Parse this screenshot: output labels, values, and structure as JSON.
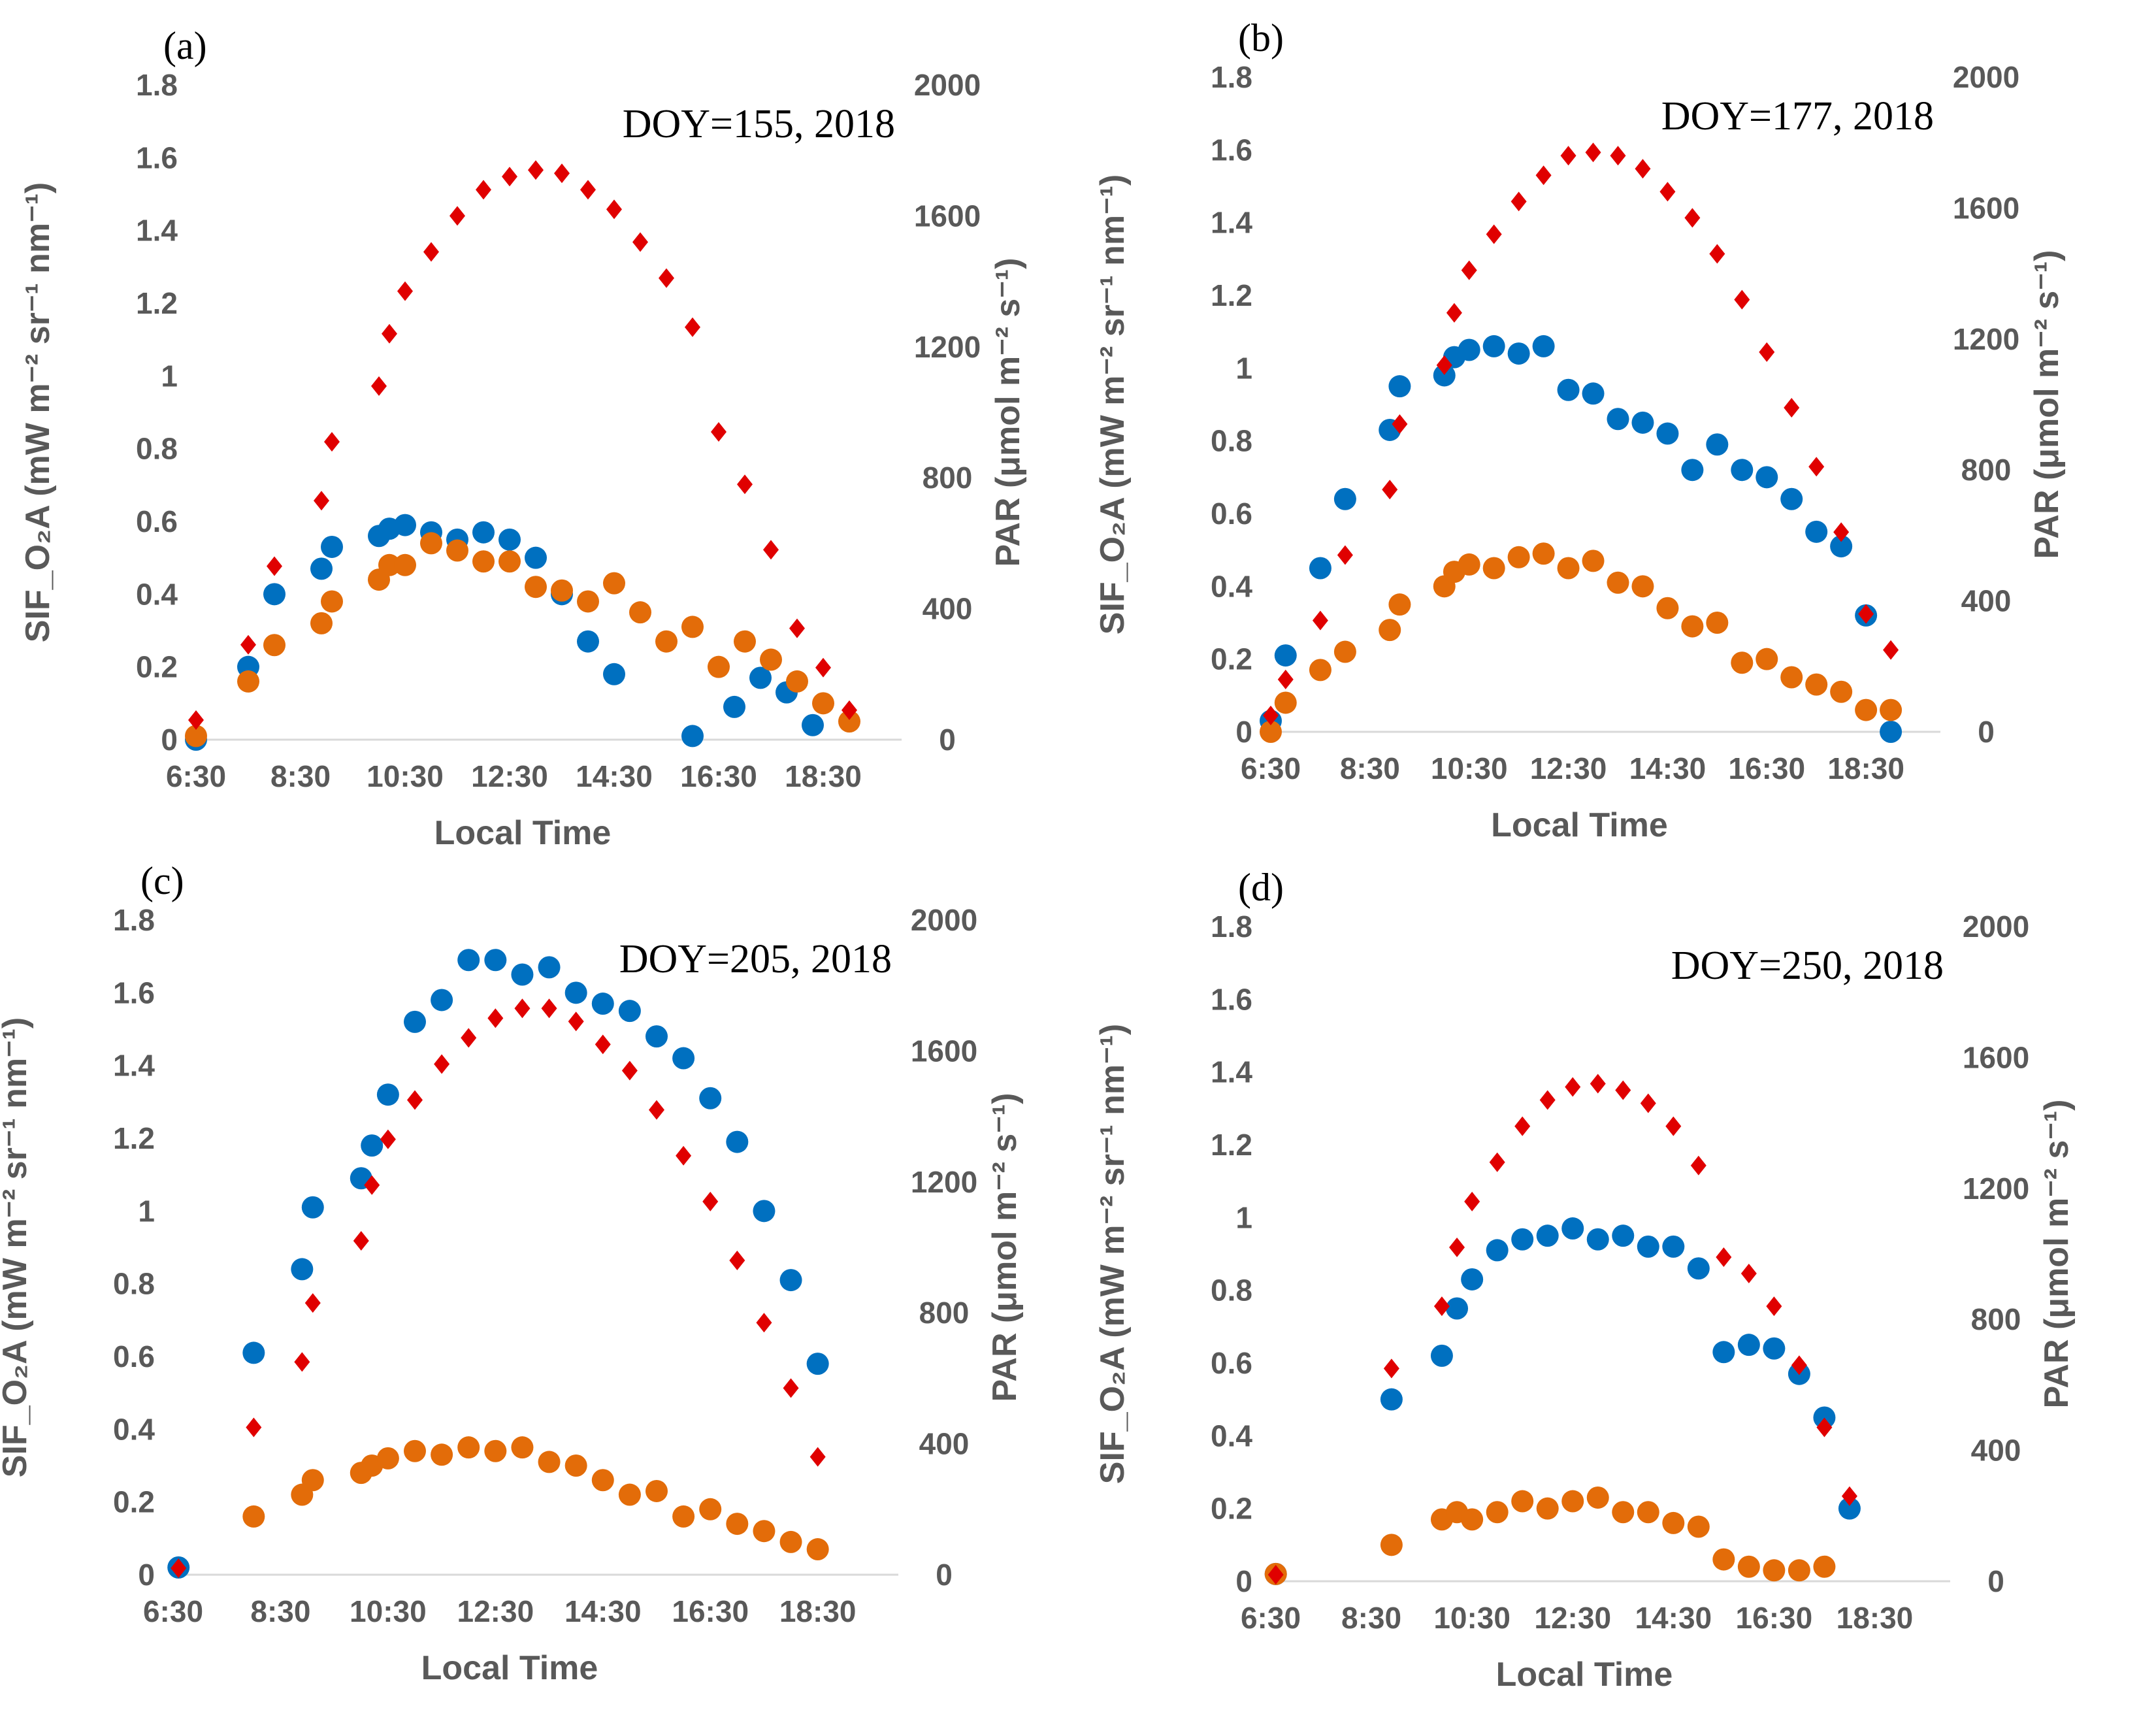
{
  "colors": {
    "sif_a": "#0070C0",
    "sif_b": "#E36C09",
    "par": "#E00000",
    "axis": "#d9d9d9",
    "text": "#595959"
  },
  "chart_data": [
    {
      "type": "scatter",
      "panel_label": "(a)",
      "annotation": "DOY=155,  2018",
      "xlabel": "Local Time",
      "ylabel_left": "SIF_O₂A (mW m⁻² sr⁻¹ nm⁻¹)",
      "ylabel_right": "PAR (μmol m⁻² s⁻¹)",
      "xlim": [
        6.5,
        20.0
      ],
      "xticks": [
        6.5,
        8.5,
        10.5,
        12.5,
        14.5,
        16.5,
        18.5
      ],
      "xtick_labels": [
        "6:30",
        "8:30",
        "10:30",
        "12:30",
        "14:30",
        "16:30",
        "18:30"
      ],
      "ylim_left": [
        0,
        1.8
      ],
      "yticks_left": [
        "0",
        "0.2",
        "0.4",
        "0.6",
        "0.8",
        "1",
        "1.2",
        "1.4",
        "1.6",
        "1.8"
      ],
      "ylim_right": [
        0,
        2000
      ],
      "yticks_right": [
        "0",
        "400",
        "800",
        "1200",
        "1600",
        "2000"
      ],
      "series": [
        {
          "name": "SIF (blue)",
          "axis": "left",
          "marker": "circle",
          "color": "#0070C0",
          "x": [
            6.5,
            7.5,
            8.0,
            8.9,
            9.1,
            10.0,
            10.2,
            10.5,
            11.0,
            11.5,
            12.0,
            12.5,
            13.0,
            13.5,
            14.0,
            14.5,
            16.0,
            16.8,
            17.3,
            17.8,
            18.3
          ],
          "y": [
            0.0,
            0.2,
            0.4,
            0.47,
            0.53,
            0.56,
            0.58,
            0.59,
            0.57,
            0.55,
            0.57,
            0.55,
            0.5,
            0.4,
            0.27,
            0.18,
            0.01,
            0.09,
            0.17,
            0.13,
            0.04
          ]
        },
        {
          "name": "SIF (orange)",
          "axis": "left",
          "marker": "circle",
          "color": "#E36C09",
          "x": [
            6.5,
            7.5,
            8.0,
            8.9,
            9.1,
            10.0,
            10.2,
            10.5,
            11.0,
            11.5,
            12.0,
            12.5,
            13.0,
            13.5,
            14.0,
            14.5,
            15.0,
            15.5,
            16.0,
            16.5,
            17.0,
            17.5,
            18.0,
            18.5,
            19.0
          ],
          "y": [
            0.01,
            0.16,
            0.26,
            0.32,
            0.38,
            0.44,
            0.48,
            0.48,
            0.54,
            0.52,
            0.49,
            0.49,
            0.42,
            0.41,
            0.38,
            0.43,
            0.35,
            0.27,
            0.31,
            0.2,
            0.27,
            0.22,
            0.16,
            0.1,
            0.05
          ]
        },
        {
          "name": "PAR",
          "axis": "right",
          "marker": "diamond",
          "color": "#E00000",
          "x": [
            6.5,
            7.5,
            8.0,
            8.9,
            9.1,
            10.0,
            10.2,
            10.5,
            11.0,
            11.5,
            12.0,
            12.5,
            13.0,
            13.5,
            14.0,
            14.5,
            15.0,
            15.5,
            16.0,
            16.5,
            17.0,
            17.5,
            18.0,
            18.5,
            19.0
          ],
          "y": [
            60,
            290,
            530,
            730,
            910,
            1080,
            1240,
            1370,
            1490,
            1600,
            1680,
            1720,
            1740,
            1730,
            1680,
            1620,
            1520,
            1410,
            1260,
            940,
            780,
            580,
            340,
            220,
            90
          ]
        }
      ]
    },
    {
      "type": "scatter",
      "panel_label": "(b)",
      "annotation": "DOY=177,  2018",
      "xlabel": "Local Time",
      "ylabel_left": "SIF_O₂A (mW m⁻² sr⁻¹ nm⁻¹)",
      "ylabel_right": "PAR (μmol m⁻² s⁻¹)",
      "xlim": [
        6.5,
        20.0
      ],
      "xticks": [
        6.5,
        8.5,
        10.5,
        12.5,
        14.5,
        16.5,
        18.5
      ],
      "xtick_labels": [
        "6:30",
        "8:30",
        "10:30",
        "12:30",
        "14:30",
        "16:30",
        "18:30"
      ],
      "ylim_left": [
        0,
        1.8
      ],
      "yticks_left": [
        "0",
        "0.2",
        "0.4",
        "0.6",
        "0.8",
        "1",
        "1.2",
        "1.4",
        "1.6",
        "1.8"
      ],
      "ylim_right": [
        0,
        2000
      ],
      "yticks_right": [
        "0",
        "400",
        "800",
        "1200",
        "1600",
        "2000"
      ],
      "series": [
        {
          "name": "SIF (blue)",
          "axis": "left",
          "marker": "circle",
          "color": "#0070C0",
          "x": [
            6.5,
            6.8,
            7.5,
            8.0,
            8.9,
            9.1,
            10.0,
            10.2,
            10.5,
            11.0,
            11.5,
            12.0,
            12.5,
            13.0,
            13.5,
            14.0,
            14.5,
            15.0,
            15.5,
            16.0,
            16.5,
            17.0,
            17.5,
            18.0,
            18.5,
            19.0
          ],
          "y": [
            0.03,
            0.21,
            0.45,
            0.64,
            0.83,
            0.95,
            0.98,
            1.03,
            1.05,
            1.06,
            1.04,
            1.06,
            0.94,
            0.93,
            0.86,
            0.85,
            0.82,
            0.72,
            0.79,
            0.72,
            0.7,
            0.64,
            0.55,
            0.51,
            0.32,
            0.0
          ]
        },
        {
          "name": "SIF (orange)",
          "axis": "left",
          "marker": "circle",
          "color": "#E36C09",
          "x": [
            6.5,
            6.8,
            7.5,
            8.0,
            8.9,
            9.1,
            10.0,
            10.2,
            10.5,
            11.0,
            11.5,
            12.0,
            12.5,
            13.0,
            13.5,
            14.0,
            14.5,
            15.0,
            15.5,
            16.0,
            16.5,
            17.0,
            17.5,
            18.0,
            18.5,
            19.0
          ],
          "y": [
            0.0,
            0.08,
            0.17,
            0.22,
            0.28,
            0.35,
            0.4,
            0.44,
            0.46,
            0.45,
            0.48,
            0.49,
            0.45,
            0.47,
            0.41,
            0.4,
            0.34,
            0.29,
            0.3,
            0.19,
            0.2,
            0.15,
            0.13,
            0.11,
            0.06,
            0.06
          ]
        },
        {
          "name": "PAR",
          "axis": "right",
          "marker": "diamond",
          "color": "#E00000",
          "x": [
            6.5,
            6.8,
            7.5,
            8.0,
            8.9,
            9.1,
            10.0,
            10.2,
            10.5,
            11.0,
            11.5,
            12.0,
            12.5,
            13.0,
            13.5,
            14.0,
            14.5,
            15.0,
            15.5,
            16.0,
            16.5,
            17.0,
            17.5,
            18.0,
            18.5,
            19.0
          ],
          "y": [
            50,
            160,
            340,
            540,
            740,
            940,
            1120,
            1280,
            1410,
            1520,
            1620,
            1700,
            1760,
            1770,
            1760,
            1720,
            1650,
            1570,
            1460,
            1320,
            1160,
            990,
            810,
            610,
            360,
            250
          ]
        }
      ]
    },
    {
      "type": "scatter",
      "panel_label": "(c)",
      "annotation": "DOY=205,  2018",
      "xlabel": "Local Time",
      "ylabel_left": "SIF_O₂A (mW m⁻² sr⁻¹ nm⁻¹)",
      "ylabel_right": "PAR (μmol m⁻² s⁻¹)",
      "xlim": [
        6.5,
        20.0
      ],
      "xticks": [
        6.5,
        8.5,
        10.5,
        12.5,
        14.5,
        16.5,
        18.5
      ],
      "xtick_labels": [
        "6:30",
        "8:30",
        "10:30",
        "12:30",
        "14:30",
        "16:30",
        "18:30"
      ],
      "ylim_left": [
        0,
        1.8
      ],
      "yticks_left": [
        "0",
        "0.2",
        "0.4",
        "0.6",
        "0.8",
        "1",
        "1.2",
        "1.4",
        "1.6",
        "1.8"
      ],
      "ylim_right": [
        0,
        2000
      ],
      "yticks_right": [
        "0",
        "400",
        "800",
        "1200",
        "1600",
        "2000"
      ],
      "series": [
        {
          "name": "SIF (blue)",
          "axis": "left",
          "marker": "circle",
          "color": "#0070C0",
          "x": [
            6.6,
            8.0,
            8.9,
            9.1,
            10.0,
            10.2,
            10.5,
            11.0,
            11.5,
            12.0,
            12.5,
            13.0,
            13.5,
            14.0,
            14.5,
            15.0,
            15.5,
            16.0,
            16.5,
            17.0,
            17.5,
            18.0,
            18.5
          ],
          "y": [
            0.02,
            0.61,
            0.84,
            1.01,
            1.09,
            1.18,
            1.32,
            1.52,
            1.58,
            1.69,
            1.69,
            1.65,
            1.67,
            1.6,
            1.57,
            1.55,
            1.48,
            1.42,
            1.31,
            1.19,
            1.0,
            0.81,
            0.58
          ]
        },
        {
          "name": "SIF (orange)",
          "axis": "left",
          "marker": "circle",
          "color": "#E36C09",
          "x": [
            8.0,
            8.9,
            9.1,
            10.0,
            10.2,
            10.5,
            11.0,
            11.5,
            12.0,
            12.5,
            13.0,
            13.5,
            14.0,
            14.5,
            15.0,
            15.5,
            16.0,
            16.5,
            17.0,
            17.5,
            18.0,
            18.5
          ],
          "y": [
            0.16,
            0.22,
            0.26,
            0.28,
            0.3,
            0.32,
            0.34,
            0.33,
            0.35,
            0.34,
            0.35,
            0.31,
            0.3,
            0.26,
            0.22,
            0.23,
            0.16,
            0.18,
            0.14,
            0.12,
            0.09,
            0.07
          ]
        },
        {
          "name": "PAR",
          "axis": "right",
          "marker": "diamond",
          "color": "#E00000",
          "x": [
            6.6,
            8.0,
            8.9,
            9.1,
            10.0,
            10.2,
            10.5,
            11.0,
            11.5,
            12.0,
            12.5,
            13.0,
            13.5,
            14.0,
            14.5,
            15.0,
            15.5,
            16.0,
            16.5,
            17.0,
            17.5,
            18.0,
            18.5
          ],
          "y": [
            20,
            450,
            650,
            830,
            1020,
            1190,
            1330,
            1450,
            1560,
            1640,
            1700,
            1730,
            1730,
            1690,
            1620,
            1540,
            1420,
            1280,
            1140,
            960,
            770,
            570,
            360
          ]
        }
      ]
    },
    {
      "type": "scatter",
      "panel_label": "(d)",
      "annotation": "DOY=250,  2018",
      "xlabel": "Local Time",
      "ylabel_left": "SIF_O₂A (mW m⁻² sr⁻¹ nm⁻¹)",
      "ylabel_right": "PAR (μmol m⁻² s⁻¹)",
      "xlim": [
        6.5,
        20.0
      ],
      "xticks": [
        6.5,
        8.5,
        10.5,
        12.5,
        14.5,
        16.5,
        18.5
      ],
      "xtick_labels": [
        "6:30",
        "8:30",
        "10:30",
        "12:30",
        "14:30",
        "16:30",
        "18:30"
      ],
      "ylim_left": [
        0,
        1.8
      ],
      "yticks_left": [
        "0",
        "0.2",
        "0.4",
        "0.6",
        "0.8",
        "1",
        "1.2",
        "1.4",
        "1.6",
        "1.8"
      ],
      "ylim_right": [
        0,
        2000
      ],
      "yticks_right": [
        "0",
        "400",
        "800",
        "1200",
        "1600",
        "2000"
      ],
      "series": [
        {
          "name": "SIF (blue)",
          "axis": "left",
          "marker": "circle",
          "color": "#0070C0",
          "x": [
            6.6,
            8.9,
            9.9,
            10.2,
            10.5,
            11.0,
            11.5,
            12.0,
            12.5,
            13.0,
            13.5,
            14.0,
            14.5,
            15.0,
            15.5,
            16.0,
            16.5,
            17.0,
            17.5,
            18.0
          ],
          "y": [
            0.02,
            0.5,
            0.62,
            0.75,
            0.83,
            0.91,
            0.94,
            0.95,
            0.97,
            0.94,
            0.95,
            0.92,
            0.92,
            0.86,
            0.63,
            0.65,
            0.64,
            0.57,
            0.45,
            0.2
          ]
        },
        {
          "name": "SIF (orange)",
          "axis": "left",
          "marker": "circle",
          "color": "#E36C09",
          "x": [
            6.6,
            8.9,
            9.9,
            10.2,
            10.5,
            11.0,
            11.5,
            12.0,
            12.5,
            13.0,
            13.5,
            14.0,
            14.5,
            15.0,
            15.5,
            16.0,
            16.5,
            17.0,
            17.5
          ],
          "y": [
            0.02,
            0.1,
            0.17,
            0.19,
            0.17,
            0.19,
            0.22,
            0.2,
            0.22,
            0.23,
            0.19,
            0.19,
            0.16,
            0.15,
            0.06,
            0.04,
            0.03,
            0.03,
            0.04
          ]
        },
        {
          "name": "PAR",
          "axis": "right",
          "marker": "diamond",
          "color": "#E00000",
          "x": [
            6.6,
            8.9,
            9.9,
            10.2,
            10.5,
            11.0,
            11.5,
            12.0,
            12.5,
            13.0,
            13.5,
            14.0,
            14.5,
            15.0,
            15.5,
            16.0,
            16.5,
            17.0,
            17.5,
            18.0
          ],
          "y": [
            20,
            650,
            840,
            1020,
            1160,
            1280,
            1390,
            1470,
            1510,
            1520,
            1500,
            1460,
            1390,
            1270,
            990,
            940,
            840,
            660,
            470,
            260
          ]
        }
      ]
    }
  ]
}
